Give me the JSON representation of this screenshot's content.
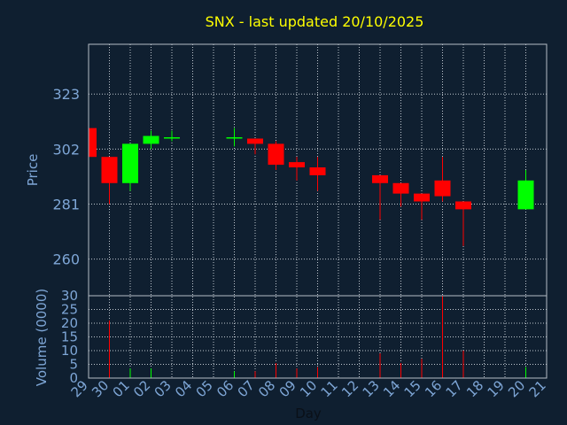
{
  "chart_data": {
    "type": "candlestick",
    "title": "SNX - last updated 20/10/2025",
    "ylabel": "Price",
    "volume_label": "Volume (0000)",
    "xlabel": "Day",
    "x_ticks": [
      "29",
      "30",
      "01",
      "02",
      "03",
      "04",
      "05",
      "06",
      "07",
      "08",
      "09",
      "10",
      "11",
      "12",
      "13",
      "14",
      "15",
      "16",
      "17",
      "18",
      "19",
      "20",
      "21"
    ],
    "price_ticks": [
      260,
      281,
      302,
      323
    ],
    "price_range": [
      246,
      342
    ],
    "volume_ticks": [
      0,
      5,
      10,
      15,
      20,
      25,
      30
    ],
    "volume_range": [
      0,
      30
    ],
    "grid": true,
    "colors": {
      "up": "#00ff00",
      "down": "#ff0000",
      "background": "#0f1f30",
      "axis_text": "#7ea6d6",
      "title": "#ffff00",
      "grid": "#c0c8d0"
    },
    "candles": [
      {
        "day": "29",
        "open": 310,
        "high": 310,
        "low": 299,
        "close": 299,
        "volume": 0
      },
      {
        "day": "30",
        "open": 299,
        "high": 299,
        "low": 281,
        "close": 289,
        "volume": 21
      },
      {
        "day": "01",
        "open": 289,
        "high": 304,
        "low": 286,
        "close": 304,
        "volume": 3.5
      },
      {
        "day": "02",
        "open": 304,
        "high": 309,
        "low": 302,
        "close": 307,
        "volume": 3.5
      },
      {
        "day": "03",
        "open": 306.5,
        "high": 309,
        "low": 305,
        "close": 306.5,
        "volume": 0
      },
      {
        "day": "06",
        "open": 306.5,
        "high": 310,
        "low": 303,
        "close": 306.5,
        "volume": 2.5
      },
      {
        "day": "07",
        "open": 306,
        "high": 306,
        "low": 300,
        "close": 304,
        "volume": 2.5
      },
      {
        "day": "08",
        "open": 304,
        "high": 305,
        "low": 294,
        "close": 296,
        "volume": 5.5
      },
      {
        "day": "09",
        "open": 297,
        "high": 299,
        "low": 290,
        "close": 295,
        "volume": 3.5
      },
      {
        "day": "10",
        "open": 295,
        "high": 299,
        "low": 286,
        "close": 292,
        "volume": 4
      },
      {
        "day": "13",
        "open": 292,
        "high": 292,
        "low": 275,
        "close": 289,
        "volume": 9
      },
      {
        "day": "14",
        "open": 289,
        "high": 289,
        "low": 280,
        "close": 285,
        "volume": 5.5
      },
      {
        "day": "15",
        "open": 285,
        "high": 285,
        "low": 275,
        "close": 282,
        "volume": 7
      },
      {
        "day": "16",
        "open": 290,
        "high": 299,
        "low": 282,
        "close": 284,
        "volume": 30
      },
      {
        "day": "17",
        "open": 282,
        "high": 282,
        "low": 265,
        "close": 279,
        "volume": 10
      },
      {
        "day": "20",
        "open": 279,
        "high": 294,
        "low": 279,
        "close": 290,
        "volume": 4
      }
    ]
  }
}
